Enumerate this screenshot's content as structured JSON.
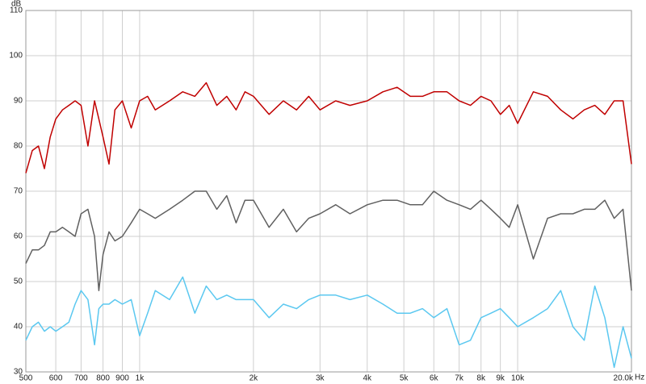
{
  "chart_data": {
    "type": "line",
    "ylabel": "dB",
    "xlabel": "Hz",
    "log_x": true,
    "grid": true,
    "x": [
      500,
      520,
      540,
      560,
      580,
      600,
      625,
      650,
      675,
      700,
      730,
      760,
      780,
      800,
      830,
      860,
      900,
      950,
      1000,
      1050,
      1100,
      1200,
      1300,
      1400,
      1500,
      1600,
      1700,
      1800,
      1900,
      2000,
      2200,
      2400,
      2600,
      2800,
      3000,
      3300,
      3600,
      4000,
      4400,
      4800,
      5200,
      5600,
      6000,
      6500,
      7000,
      7500,
      8000,
      8500,
      9000,
      9500,
      10000,
      11000,
      12000,
      13000,
      14000,
      15000,
      16000,
      17000,
      18000,
      19000,
      20000
    ],
    "series": [
      {
        "color": "#c00000",
        "values": [
          74,
          79,
          80,
          75,
          82,
          86,
          88,
          89,
          90,
          89,
          80,
          90,
          86,
          82,
          76,
          88,
          90,
          84,
          90,
          91,
          88,
          90,
          92,
          91,
          94,
          89,
          91,
          88,
          92,
          91,
          87,
          90,
          88,
          91,
          88,
          90,
          89,
          90,
          92,
          93,
          91,
          91,
          92,
          92,
          90,
          89,
          91,
          90,
          87,
          89,
          85,
          92,
          91,
          88,
          86,
          88,
          89,
          87,
          90,
          90,
          76
        ]
      },
      {
        "color": "#606060",
        "values": [
          54,
          57,
          57,
          58,
          61,
          61,
          62,
          61,
          60,
          65,
          66,
          60,
          48,
          56,
          61,
          59,
          60,
          63,
          66,
          65,
          64,
          66,
          68,
          70,
          70,
          66,
          69,
          63,
          68,
          68,
          62,
          66,
          61,
          64,
          65,
          67,
          65,
          67,
          68,
          68,
          67,
          67,
          70,
          68,
          67,
          66,
          68,
          66,
          64,
          62,
          67,
          55,
          64,
          65,
          65,
          66,
          66,
          68,
          64,
          66,
          48
        ]
      },
      {
        "color": "#5bc8f0",
        "values": [
          37,
          40,
          41,
          39,
          40,
          39,
          40,
          41,
          45,
          48,
          46,
          36,
          44,
          45,
          45,
          46,
          45,
          46,
          38,
          43,
          48,
          46,
          51,
          43,
          49,
          46,
          47,
          46,
          46,
          46,
          42,
          45,
          44,
          46,
          47,
          47,
          46,
          47,
          45,
          43,
          43,
          44,
          42,
          44,
          36,
          37,
          42,
          43,
          44,
          42,
          40,
          42,
          44,
          48,
          40,
          37,
          49,
          42,
          31,
          40,
          33
        ]
      }
    ],
    "xlim": [
      500,
      20000
    ],
    "ylim": [
      30,
      110
    ],
    "xticks": [
      500,
      600,
      700,
      800,
      900,
      {
        "value": 1000,
        "label": "1k"
      },
      {
        "value": 2000,
        "label": "2k"
      },
      {
        "value": 3000,
        "label": "3k"
      },
      {
        "value": 4000,
        "label": "4k"
      },
      {
        "value": 5000,
        "label": "5k"
      },
      {
        "value": 6000,
        "label": "6k"
      },
      {
        "value": 7000,
        "label": "7k"
      },
      {
        "value": 8000,
        "label": "8k"
      },
      {
        "value": 9000,
        "label": "9k"
      },
      {
        "value": 10000,
        "label": "10k"
      },
      {
        "value": 20000,
        "label": "20.0k"
      }
    ],
    "yticks": [
      30,
      40,
      50,
      60,
      70,
      80,
      90,
      100,
      110
    ]
  }
}
